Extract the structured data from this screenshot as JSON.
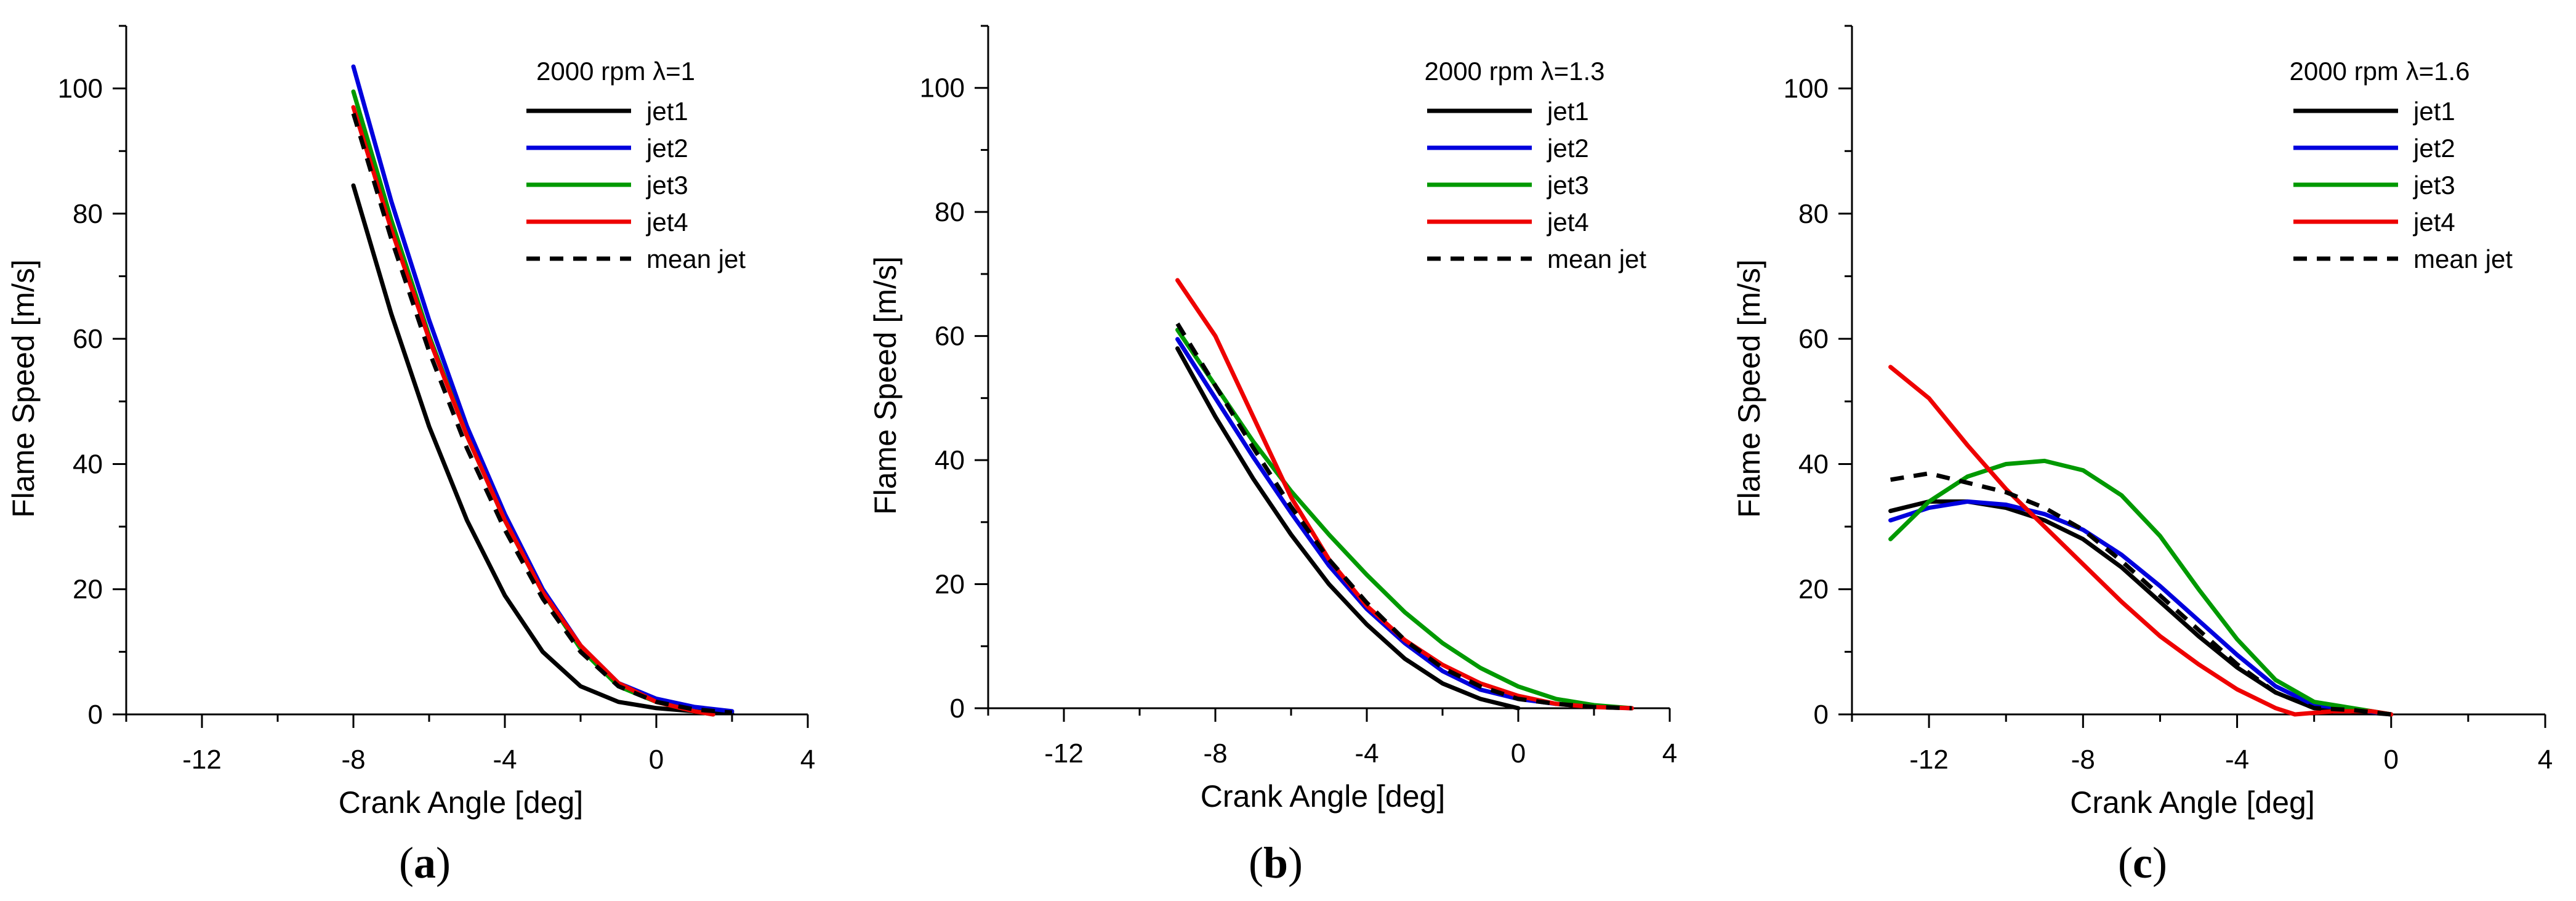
{
  "chart_data": [
    {
      "type": "line",
      "panel_label": "a",
      "title": "2000 rpm λ=1",
      "xlabel": "Crank Angle [deg]",
      "ylabel": "Flame Speed [m/s]",
      "xlim": [
        -14,
        4
      ],
      "ylim": [
        0,
        110
      ],
      "xticks": [
        -12,
        -8,
        -4,
        0,
        4
      ],
      "yticks": [
        0,
        20,
        40,
        60,
        80,
        100
      ],
      "legend_position": "top-right",
      "series": [
        {
          "name": "jet1",
          "color": "#000000",
          "dash": "solid",
          "points": [
            [
              -8,
              84.5
            ],
            [
              -7,
              64
            ],
            [
              -6,
              46
            ],
            [
              -5,
              31
            ],
            [
              -4,
              19
            ],
            [
              -3,
              10
            ],
            [
              -2,
              4.5
            ],
            [
              -1,
              2
            ],
            [
              0,
              1
            ],
            [
              1,
              0.5
            ],
            [
              2,
              0.2
            ]
          ]
        },
        {
          "name": "jet2",
          "color": "#0000dd",
          "dash": "solid",
          "points": [
            [
              -8,
              103.5
            ],
            [
              -7,
              82
            ],
            [
              -6,
              63
            ],
            [
              -5,
              46
            ],
            [
              -4,
              32
            ],
            [
              -3,
              20
            ],
            [
              -2,
              11
            ],
            [
              -1,
              5
            ],
            [
              0,
              2.5
            ],
            [
              1,
              1.2
            ],
            [
              2,
              0.5
            ]
          ]
        },
        {
          "name": "jet3",
          "color": "#009900",
          "dash": "solid",
          "points": [
            [
              -8,
              99.5
            ],
            [
              -7,
              79
            ],
            [
              -6,
              60.5
            ],
            [
              -5,
              44.5
            ],
            [
              -4,
              31
            ],
            [
              -3,
              19.5
            ],
            [
              -2,
              10.5
            ],
            [
              -1,
              4.5
            ],
            [
              0,
              2
            ],
            [
              1,
              0.5
            ],
            [
              1.5,
              0
            ]
          ]
        },
        {
          "name": "jet4",
          "color": "#ee0000",
          "dash": "solid",
          "points": [
            [
              -8,
              97
            ],
            [
              -7,
              77.5
            ],
            [
              -6,
              60
            ],
            [
              -5,
              44.5
            ],
            [
              -4,
              31
            ],
            [
              -3,
              19.5
            ],
            [
              -2,
              11
            ],
            [
              -1,
              5
            ],
            [
              0,
              2
            ],
            [
              1,
              0.5
            ],
            [
              1.5,
              0
            ]
          ]
        },
        {
          "name": "mean jet",
          "color": "#000000",
          "dash": "dashed",
          "points": [
            [
              -8,
              96
            ],
            [
              -7,
              76
            ],
            [
              -6,
              58
            ],
            [
              -5,
              42.5
            ],
            [
              -4,
              29.5
            ],
            [
              -3,
              18.5
            ],
            [
              -2,
              10
            ],
            [
              -1,
              4.5
            ],
            [
              0,
              2
            ],
            [
              1,
              0.8
            ],
            [
              2,
              0.3
            ]
          ]
        }
      ]
    },
    {
      "type": "line",
      "panel_label": "b",
      "title": "2000 rpm λ=1.3",
      "xlabel": "Crank Angle [deg]",
      "ylabel": "Flame Speed [m/s]",
      "xlim": [
        -14,
        4
      ],
      "ylim": [
        0,
        110
      ],
      "xticks": [
        -12,
        -8,
        -4,
        0,
        4
      ],
      "yticks": [
        0,
        20,
        40,
        60,
        80,
        100
      ],
      "legend_position": "top-right",
      "series": [
        {
          "name": "jet1",
          "color": "#000000",
          "dash": "solid",
          "points": [
            [
              -9,
              58
            ],
            [
              -8,
              47
            ],
            [
              -7,
              37
            ],
            [
              -6,
              28
            ],
            [
              -5,
              20
            ],
            [
              -4,
              13.5
            ],
            [
              -3,
              8
            ],
            [
              -2,
              4
            ],
            [
              -1,
              1.5
            ],
            [
              0,
              0
            ]
          ]
        },
        {
          "name": "jet2",
          "color": "#0000dd",
          "dash": "solid",
          "points": [
            [
              -9,
              59.5
            ],
            [
              -8,
              50
            ],
            [
              -7,
              40.5
            ],
            [
              -6,
              31.5
            ],
            [
              -5,
              23
            ],
            [
              -4,
              16
            ],
            [
              -3,
              10.5
            ],
            [
              -2,
              6
            ],
            [
              -1,
              3
            ],
            [
              0,
              1.5
            ],
            [
              1,
              0.7
            ],
            [
              2,
              0.3
            ],
            [
              3,
              0
            ]
          ]
        },
        {
          "name": "jet3",
          "color": "#009900",
          "dash": "solid",
          "points": [
            [
              -9,
              61
            ],
            [
              -8,
              52
            ],
            [
              -7,
              43
            ],
            [
              -6,
              35
            ],
            [
              -5,
              28
            ],
            [
              -4,
              21.5
            ],
            [
              -3,
              15.5
            ],
            [
              -2,
              10.5
            ],
            [
              -1,
              6.5
            ],
            [
              0,
              3.5
            ],
            [
              1,
              1.5
            ],
            [
              2,
              0.5
            ],
            [
              3,
              0
            ]
          ]
        },
        {
          "name": "jet4",
          "color": "#ee0000",
          "dash": "solid",
          "points": [
            [
              -9,
              69
            ],
            [
              -8,
              60
            ],
            [
              -7,
              47
            ],
            [
              -6,
              34
            ],
            [
              -5,
              24
            ],
            [
              -4,
              16.5
            ],
            [
              -3,
              11
            ],
            [
              -2,
              7
            ],
            [
              -1,
              4
            ],
            [
              0,
              2
            ],
            [
              1,
              0.7
            ],
            [
              2,
              0.2
            ],
            [
              3,
              0
            ]
          ]
        },
        {
          "name": "mean jet",
          "color": "#000000",
          "dash": "dashed",
          "points": [
            [
              -9,
              62
            ],
            [
              -8,
              52
            ],
            [
              -7,
              42
            ],
            [
              -6,
              32.5
            ],
            [
              -5,
              24
            ],
            [
              -4,
              17
            ],
            [
              -3,
              11
            ],
            [
              -2,
              6.5
            ],
            [
              -1,
              3.5
            ],
            [
              0,
              1.5
            ],
            [
              1,
              0.7
            ],
            [
              2,
              0.2
            ],
            [
              3,
              0
            ]
          ]
        }
      ]
    },
    {
      "type": "line",
      "panel_label": "c",
      "title": "2000 rpm λ=1.6",
      "xlabel": "Crank Angle [deg]",
      "ylabel": "Flame Speed [m/s]",
      "xlim": [
        -14,
        4
      ],
      "ylim": [
        0,
        110
      ],
      "xticks": [
        -12,
        -8,
        -4,
        0,
        4
      ],
      "yticks": [
        0,
        20,
        40,
        60,
        80,
        100
      ],
      "legend_position": "top-right",
      "series": [
        {
          "name": "jet1",
          "color": "#000000",
          "dash": "solid",
          "points": [
            [
              -13,
              32.5
            ],
            [
              -12,
              34
            ],
            [
              -11,
              34
            ],
            [
              -10,
              33
            ],
            [
              -9,
              31
            ],
            [
              -8,
              28
            ],
            [
              -7,
              23.5
            ],
            [
              -6,
              18
            ],
            [
              -5,
              12.5
            ],
            [
              -4,
              7.5
            ],
            [
              -3,
              3.5
            ],
            [
              -2,
              1
            ],
            [
              -1,
              0.5
            ],
            [
              0,
              0
            ]
          ]
        },
        {
          "name": "jet2",
          "color": "#0000dd",
          "dash": "solid",
          "points": [
            [
              -13,
              31
            ],
            [
              -12,
              33
            ],
            [
              -11,
              34
            ],
            [
              -10,
              33.5
            ],
            [
              -9,
              32
            ],
            [
              -8,
              29.5
            ],
            [
              -7,
              25.5
            ],
            [
              -6,
              20.5
            ],
            [
              -5,
              15
            ],
            [
              -4,
              9.5
            ],
            [
              -3,
              4.5
            ],
            [
              -2,
              1.5
            ],
            [
              -1,
              0.8
            ],
            [
              0,
              0
            ]
          ]
        },
        {
          "name": "jet3",
          "color": "#009900",
          "dash": "solid",
          "points": [
            [
              -13,
              28
            ],
            [
              -12,
              34
            ],
            [
              -11,
              38
            ],
            [
              -10,
              40
            ],
            [
              -9,
              40.5
            ],
            [
              -8,
              39
            ],
            [
              -7,
              35
            ],
            [
              -6,
              28.5
            ],
            [
              -5,
              20
            ],
            [
              -4,
              12
            ],
            [
              -3,
              5.5
            ],
            [
              -2,
              2
            ],
            [
              -1,
              1
            ],
            [
              0,
              0
            ]
          ]
        },
        {
          "name": "jet4",
          "color": "#ee0000",
          "dash": "solid",
          "points": [
            [
              -13,
              55.5
            ],
            [
              -12,
              50.5
            ],
            [
              -11,
              43
            ],
            [
              -10,
              36
            ],
            [
              -9,
              30
            ],
            [
              -8,
              24
            ],
            [
              -7,
              18
            ],
            [
              -6,
              12.5
            ],
            [
              -5,
              8
            ],
            [
              -4,
              4
            ],
            [
              -3,
              1
            ],
            [
              -2.5,
              0
            ],
            [
              -1.5,
              0.5
            ],
            [
              -0.5,
              0.5
            ],
            [
              0,
              0
            ]
          ]
        },
        {
          "name": "mean jet",
          "color": "#000000",
          "dash": "dashed",
          "points": [
            [
              -13,
              37.5
            ],
            [
              -12,
              38.5
            ],
            [
              -11,
              37
            ],
            [
              -10,
              35.5
            ],
            [
              -9,
              33
            ],
            [
              -8,
              29.5
            ],
            [
              -7,
              24.5
            ],
            [
              -6,
              19
            ],
            [
              -5,
              13.5
            ],
            [
              -4,
              8
            ],
            [
              -3,
              3.5
            ],
            [
              -2,
              1
            ],
            [
              -1,
              0.7
            ],
            [
              0,
              0
            ]
          ]
        }
      ]
    }
  ]
}
